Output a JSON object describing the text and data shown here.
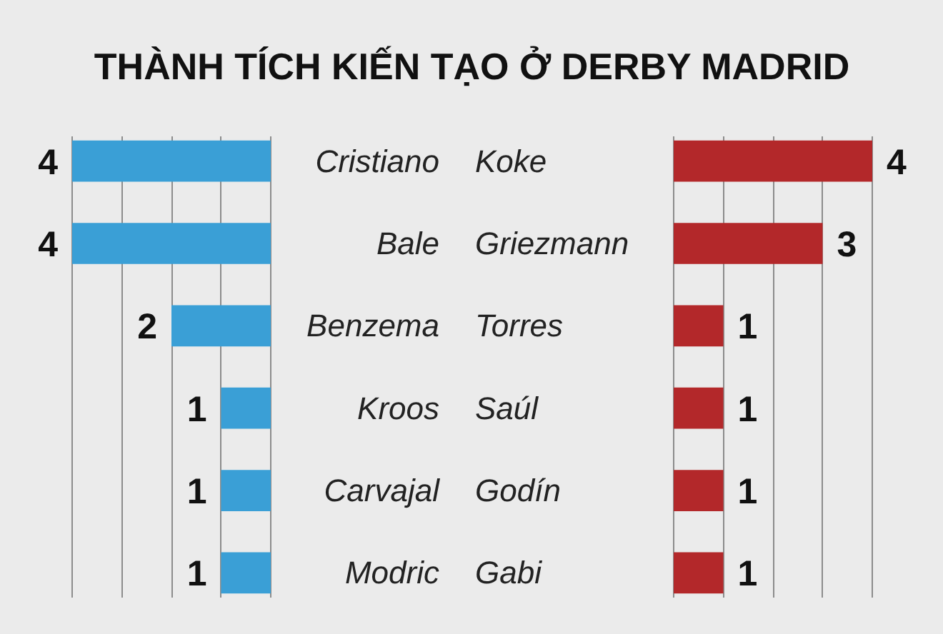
{
  "chart_data": [
    {
      "type": "bar",
      "orientation": "horizontal",
      "title": "THÀNH TÍCH KIẾN TẠO Ở DERBY MADRID",
      "categories": [
        "Cristiano",
        "Bale",
        "Benzema",
        "Kroos",
        "Carvajal",
        "Modric"
      ],
      "values": [
        4,
        4,
        2,
        1,
        1,
        1
      ],
      "color": "#3a9fd6",
      "xticks": [
        {
          "value": 0,
          "label": null
        },
        {
          "value": 1,
          "label": null
        },
        {
          "value": 2,
          "label": null
        },
        {
          "value": 3,
          "label": null
        },
        {
          "value": 4,
          "label": null
        }
      ],
      "grid": "x",
      "tick_labels": "y",
      "data_labels": true
    },
    {
      "type": "bar",
      "orientation": "horizontal",
      "categories": [
        "Koke",
        "Griezmann",
        "Torres",
        "Saúl",
        "Godín",
        "Gabi"
      ],
      "values": [
        4,
        3,
        1,
        1,
        1,
        1
      ],
      "color": "#b3282a",
      "xticks": [
        {
          "value": 0,
          "label": null
        },
        {
          "value": 1,
          "label": null
        },
        {
          "value": 2,
          "label": null
        },
        {
          "value": 3,
          "label": null
        },
        {
          "value": 4,
          "label": null
        }
      ],
      "grid": "x",
      "tick_labels": "y",
      "data_labels": true
    }
  ]
}
